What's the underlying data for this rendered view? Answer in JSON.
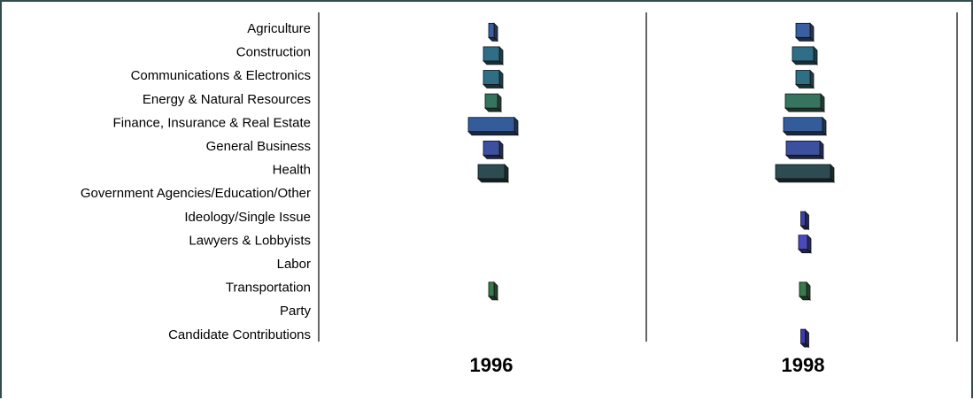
{
  "chart_data": {
    "type": "bar",
    "categories": [
      "Agriculture",
      "Construction",
      "Communications & Electronics",
      "Energy & Natural Resources",
      "Finance, Insurance & Real Estate",
      "General Business",
      "Health",
      "Government Agencies/Education/Other",
      "Ideology/Single Issue",
      "Lawyers & Lobbyists",
      "Labor",
      "Transportation",
      "Party",
      "Candidate Contributions"
    ],
    "series": [
      {
        "name": "1996",
        "values": [
          6,
          18,
          18,
          14,
          52,
          18,
          30,
          0,
          0,
          0,
          0,
          6,
          0,
          0
        ]
      },
      {
        "name": "1998",
        "values": [
          16,
          24,
          16,
          40,
          44,
          38,
          62,
          0,
          5,
          10,
          0,
          8,
          0,
          5
        ]
      }
    ],
    "title": "",
    "xlabel": "",
    "ylabel": "",
    "legend": "none",
    "grid": false,
    "colors": [
      "#3a5fa0",
      "#2f6e86",
      "#2f6f86",
      "#37745f",
      "#345b9a",
      "#3c50a0",
      "#2c4c52",
      "#4a4a8a",
      "#3a44a8",
      "#4a4abd",
      "#4a4a8a",
      "#3a7a4a",
      "#4a4a8a",
      "#3c3cae"
    ]
  }
}
